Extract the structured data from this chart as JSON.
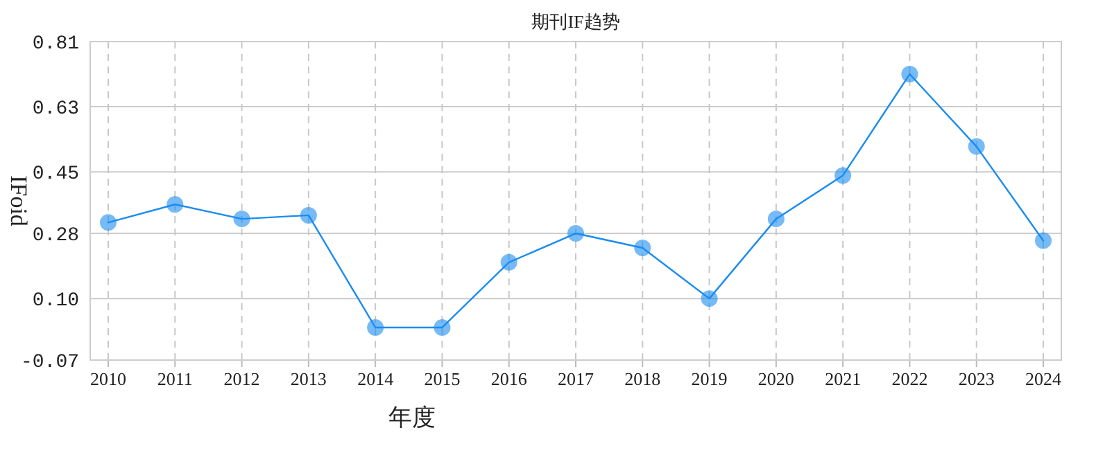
{
  "chart_data": {
    "type": "line",
    "title": "期刊IF趋势",
    "xlabel": "年度",
    "ylabel": "IFoid",
    "categories": [
      "2010",
      "2011",
      "2012",
      "2013",
      "2014",
      "2015",
      "2016",
      "2017",
      "2018",
      "2019",
      "2020",
      "2021",
      "2022",
      "2023",
      "2024"
    ],
    "series": [
      {
        "color": "#1a8cf0",
        "values": [
          0.31,
          0.36,
          0.32,
          0.33,
          0.02,
          0.02,
          0.2,
          0.28,
          0.24,
          0.1,
          0.32,
          0.44,
          0.72,
          0.52,
          0.26
        ]
      }
    ],
    "ylim": [
      -0.07,
      0.81
    ],
    "yticks": [
      {
        "value": -0.07,
        "label": "-0.07"
      },
      {
        "value": 0.1,
        "label": "0.10"
      },
      0.28,
      0.45,
      0.63,
      0.81
    ],
    "grid": true,
    "marker": "circle",
    "line_style": "solid"
  }
}
